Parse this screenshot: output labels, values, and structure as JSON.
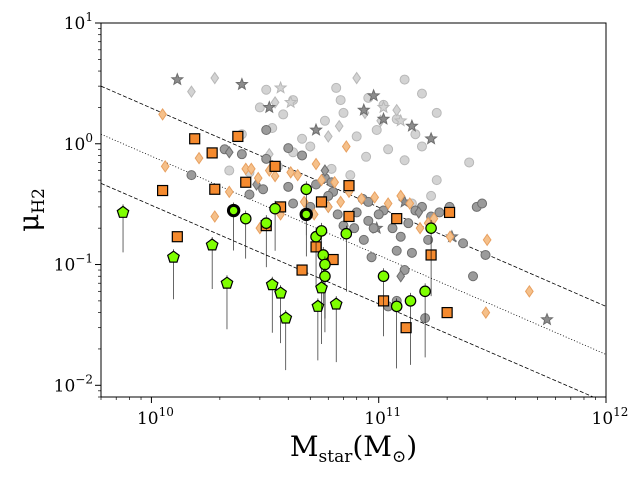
{
  "chart_data": {
    "type": "scatter",
    "xlabel": "M_star(M_⊙)",
    "ylabel": "μ_H2",
    "x_scale": "log",
    "y_scale": "log",
    "xlim": [
      6000000000.0,
      1000000000000.0
    ],
    "ylim": [
      0.008,
      10
    ],
    "x_ticks": [
      {
        "value": 10000000000.0,
        "base": "10",
        "exp": "10"
      },
      {
        "value": 100000000000.0,
        "base": "10",
        "exp": "11"
      },
      {
        "value": 1000000000000.0,
        "base": "10",
        "exp": "12"
      }
    ],
    "y_ticks": [
      {
        "value": 0.01,
        "base": "10",
        "exp": "−2"
      },
      {
        "value": 0.1,
        "base": "10",
        "exp": "−1"
      },
      {
        "value": 1,
        "base": "10",
        "exp": "0"
      },
      {
        "value": 10,
        "base": "10",
        "exp": "1"
      }
    ],
    "grid": false,
    "reference_lines": [
      {
        "style": "dashed",
        "points": [
          [
            6000000000.0,
            3.0
          ],
          [
            1000000000000.0,
            0.045
          ]
        ]
      },
      {
        "style": "dotted",
        "points": [
          [
            6000000000.0,
            1.2
          ],
          [
            1000000000000.0,
            0.018
          ]
        ]
      },
      {
        "style": "dashed",
        "points": [
          [
            6000000000.0,
            0.47
          ],
          [
            1000000000000.0,
            0.0072
          ]
        ]
      }
    ],
    "series": [
      {
        "marker": "circle",
        "color": "#d3d3d3",
        "edge": "#b8b8b8",
        "points": [
          [
            32000000000.0,
            2.8
          ],
          [
            42000000000.0,
            2.3
          ],
          [
            65000000000.0,
            2.9
          ],
          [
            90000000000.0,
            2.4
          ],
          [
            130000000000.0,
            3.4
          ],
          [
            98000000000.0,
            1.3
          ],
          [
            145000000000.0,
            1.2
          ],
          [
            180000000000.0,
            1.8
          ],
          [
            30000000000.0,
            2.0
          ],
          [
            70000000000.0,
            1.8
          ],
          [
            105000000000.0,
            2.1
          ],
          [
            155000000000.0,
            2.6
          ],
          [
            120000000000.0,
            1.6
          ],
          [
            80000000000.0,
            1.15
          ],
          [
            25000000000.0,
            1.2
          ],
          [
            34000000000.0,
            1.35
          ],
          [
            50000000000.0,
            0.95
          ],
          [
            130000000000.0,
            0.73
          ],
          [
            180000000000.0,
            0.5
          ],
          [
            250000000000.0,
            0.7
          ],
          [
            42000000000.0,
            0.85
          ],
          [
            62000000000.0,
            0.62
          ],
          [
            110000000000.0,
            0.9
          ],
          [
            140000000000.0,
            0.32
          ],
          [
            170000000000.0,
            0.37
          ],
          [
            58000000000.0,
            1.55
          ],
          [
            38000000000.0,
            1.75
          ],
          [
            27000000000.0,
            0.58
          ],
          [
            75000000000.0,
            0.55
          ],
          [
            155000000000.0,
            0.95
          ],
          [
            68000000000.0,
            2.3
          ],
          [
            36000000000.0,
            0.65
          ],
          [
            88000000000.0,
            0.78
          ],
          [
            22000000000.0,
            0.6
          ],
          [
            46000000000.0,
            1.1
          ]
        ]
      },
      {
        "marker": "diamond",
        "color": "#d3d3d3",
        "edge": "#b8b8b8",
        "points": [
          [
            15000000000.0,
            2.7
          ],
          [
            19000000000.0,
            3.5
          ],
          [
            35000000000.0,
            2.2
          ],
          [
            80000000000.0,
            3.5
          ],
          [
            120000000000.0,
            1.9
          ],
          [
            67000000000.0,
            1.4
          ],
          [
            102000000000.0,
            1.55
          ],
          [
            87000000000.0,
            1.8
          ],
          [
            60000000000.0,
            1.15
          ],
          [
            33000000000.0,
            0.82
          ]
        ]
      },
      {
        "marker": "star",
        "color": "#d3d3d3",
        "edge": "#b8b8b8",
        "points": [
          [
            37000000000.0,
            2.9
          ],
          [
            41000000000.0,
            2.2
          ],
          [
            105000000000.0,
            2.0
          ],
          [
            125000000000.0,
            1.55
          ]
        ]
      },
      {
        "marker": "star",
        "color": "#8c8c8c",
        "edge": "#6e6e6e",
        "points": [
          [
            13000000000.0,
            3.4
          ],
          [
            25000000000.0,
            3.1
          ],
          [
            33000000000.0,
            2.0
          ],
          [
            53000000000.0,
            1.3
          ],
          [
            86000000000.0,
            1.9
          ],
          [
            95000000000.0,
            2.5
          ],
          [
            105000000000.0,
            1.6
          ],
          [
            140000000000.0,
            1.4
          ],
          [
            170000000000.0,
            1.1
          ],
          [
            210000000000.0,
            0.17
          ],
          [
            130000000000.0,
            0.33
          ],
          [
            98000000000.0,
            0.2
          ],
          [
            550000000000.0,
            0.035
          ]
        ]
      },
      {
        "marker": "circle",
        "color": "#9b9b9b",
        "edge": "#6e6e6e",
        "points": [
          [
            15000000000.0,
            0.55
          ],
          [
            21000000000.0,
            0.9
          ],
          [
            25000000000.0,
            0.82
          ],
          [
            32000000000.0,
            1.3
          ],
          [
            40000000000.0,
            0.92
          ],
          [
            46000000000.0,
            0.8
          ],
          [
            58000000000.0,
            0.52
          ],
          [
            63000000000.0,
            0.4
          ],
          [
            74000000000.0,
            0.44
          ],
          [
            85000000000.0,
            0.35
          ],
          [
            90000000000.0,
            0.23
          ],
          [
            105000000000.0,
            0.28
          ],
          [
            115000000000.0,
            0.2
          ],
          [
            125000000000.0,
            0.17
          ],
          [
            135000000000.0,
            0.22
          ],
          [
            145000000000.0,
            0.28
          ],
          [
            155000000000.0,
            0.3
          ],
          [
            170000000000.0,
            0.25
          ],
          [
            185000000000.0,
            0.27
          ],
          [
            205000000000.0,
            0.3
          ],
          [
            235000000000.0,
            0.15
          ],
          [
            270000000000.0,
            0.3
          ],
          [
            285000000000.0,
            0.32
          ],
          [
            60000000000.0,
            0.37
          ],
          [
            50000000000.0,
            0.3
          ],
          [
            42000000000.0,
            0.32
          ],
          [
            31000000000.0,
            0.42
          ],
          [
            27000000000.0,
            0.38
          ],
          [
            80000000000.0,
            0.27
          ],
          [
            66000000000.0,
            0.26
          ],
          [
            70000000000.0,
            0.21
          ],
          [
            95000000000.0,
            0.2
          ],
          [
            100000000000.0,
            0.26
          ],
          [
            120000000000.0,
            0.13
          ],
          [
            130000000000.0,
            0.09
          ],
          [
            93000000000.0,
            0.115
          ],
          [
            86000000000.0,
            0.16
          ],
          [
            78000000000.0,
            0.2
          ],
          [
            110000000000.0,
            0.045
          ],
          [
            120000000000.0,
            0.05
          ],
          [
            160000000000.0,
            0.036
          ],
          [
            140000000000.0,
            0.125
          ],
          [
            295000000000.0,
            0.12
          ],
          [
            165000000000.0,
            0.16
          ],
          [
            260000000000.0,
            0.08
          ],
          [
            40000000000.0,
            0.44
          ],
          [
            53000000000.0,
            0.46
          ],
          [
            62000000000.0,
            0.48
          ],
          [
            90000000000.0,
            0.33
          ],
          [
            32000000000.0,
            0.75
          ]
        ]
      },
      {
        "marker": "diamond",
        "color": "#9b9b9b",
        "edge": "#6e6e6e",
        "points": [
          [
            22000000000.0,
            0.85
          ],
          [
            29000000000.0,
            0.46
          ],
          [
            58000000000.0,
            0.6
          ],
          [
            60000000000.0,
            0.3
          ],
          [
            125000000000.0,
            0.08
          ],
          [
            150000000000.0,
            0.27
          ]
        ]
      },
      {
        "marker": "diamond",
        "color": "#f5c08a",
        "edge": "#e8a060",
        "points": [
          [
            11200000000.0,
            1.75
          ],
          [
            11500000000.0,
            0.65
          ],
          [
            16200000000.0,
            0.76
          ],
          [
            22000000000.0,
            0.4
          ],
          [
            26000000000.0,
            0.62
          ],
          [
            29500000000.0,
            0.52
          ],
          [
            33000000000.0,
            0.6
          ],
          [
            41000000000.0,
            0.58
          ],
          [
            44000000000.0,
            0.55
          ],
          [
            53000000000.0,
            0.68
          ],
          [
            56000000000.0,
            0.5
          ],
          [
            64000000000.0,
            0.48
          ],
          [
            74000000000.0,
            0.4
          ],
          [
            84000000000.0,
            0.35
          ],
          [
            96000000000.0,
            0.36
          ],
          [
            110000000000.0,
            0.32
          ],
          [
            125000000000.0,
            0.37
          ],
          [
            137000000000.0,
            0.32
          ],
          [
            152000000000.0,
            0.2
          ],
          [
            165000000000.0,
            0.22
          ],
          [
            175000000000.0,
            0.24
          ],
          [
            206000000000.0,
            0.17
          ],
          [
            300000000000.0,
            0.16
          ],
          [
            460000000000.0,
            0.06
          ],
          [
            296000000000.0,
            0.04
          ],
          [
            19000000000.0,
            0.25
          ],
          [
            23000000000.0,
            0.28
          ],
          [
            37000000000.0,
            0.26
          ],
          [
            47000000000.0,
            0.33
          ],
          [
            68000000000.0,
            0.33
          ],
          [
            52000000000.0,
            0.26
          ],
          [
            60000000000.0,
            0.3
          ],
          [
            30000000000.0,
            0.2
          ],
          [
            72000000000.0,
            0.95
          ],
          [
            35000000000.0,
            0.54
          ],
          [
            27500000000.0,
            0.62
          ]
        ]
      },
      {
        "marker": "square",
        "color": "#f58a2e",
        "edge": "#000000",
        "points": [
          [
            15500000000.0,
            1.1
          ],
          [
            11200000000.0,
            0.41
          ],
          [
            13000000000.0,
            0.17
          ],
          [
            18500000000.0,
            0.84
          ],
          [
            19000000000.0,
            0.42
          ],
          [
            24000000000.0,
            1.15
          ],
          [
            26000000000.0,
            0.48
          ],
          [
            32000000000.0,
            0.21
          ],
          [
            37000000000.0,
            0.3
          ],
          [
            46000000000.0,
            0.09
          ],
          [
            53000000000.0,
            0.14
          ],
          [
            56000000000.0,
            0.33
          ],
          [
            63000000000.0,
            0.11
          ],
          [
            74000000000.0,
            0.45
          ],
          [
            74000000000.0,
            0.25
          ],
          [
            105000000000.0,
            0.05
          ],
          [
            120000000000.0,
            0.24
          ],
          [
            132000000000.0,
            0.03
          ],
          [
            170000000000.0,
            0.12
          ],
          [
            200000000000.0,
            0.04
          ],
          [
            205000000000.0,
            0.27
          ],
          [
            35000000000.0,
            0.65
          ]
        ]
      },
      {
        "marker": "circle",
        "color": "#7fff00",
        "edge": "#000000",
        "errors": true,
        "points": [
          [
            26000000000.0,
            0.24
          ],
          [
            35000000000.0,
            0.29
          ],
          [
            32000000000.0,
            0.22
          ],
          [
            48000000000.0,
            0.42
          ],
          [
            53000000000.0,
            0.17
          ],
          [
            56000000000.0,
            0.19
          ],
          [
            57000000000.0,
            0.12
          ],
          [
            58000000000.0,
            0.1
          ],
          [
            58000000000.0,
            0.08
          ],
          [
            72000000000.0,
            0.18
          ],
          [
            105000000000.0,
            0.08
          ],
          [
            120000000000.0,
            0.045
          ],
          [
            138000000000.0,
            0.05
          ],
          [
            160000000000.0,
            0.06
          ],
          [
            170000000000.0,
            0.2
          ]
        ]
      },
      {
        "marker": "circle",
        "color": "#7fff00",
        "edge": "#000000",
        "thick_edge": true,
        "errors": true,
        "points": [
          [
            23000000000.0,
            0.28
          ],
          [
            48000000000.0,
            0.26
          ]
        ]
      },
      {
        "marker": "pentagon",
        "color": "#7fff00",
        "edge": "#000000",
        "errors": true,
        "points": [
          [
            7500000000.0,
            0.27
          ],
          [
            12500000000.0,
            0.115
          ],
          [
            18500000000.0,
            0.145
          ],
          [
            21500000000.0,
            0.07
          ],
          [
            34000000000.0,
            0.068
          ],
          [
            37000000000.0,
            0.058
          ],
          [
            39000000000.0,
            0.036
          ],
          [
            54000000000.0,
            0.045
          ],
          [
            56000000000.0,
            0.064
          ],
          [
            65000000000.0,
            0.047
          ]
        ]
      }
    ]
  }
}
